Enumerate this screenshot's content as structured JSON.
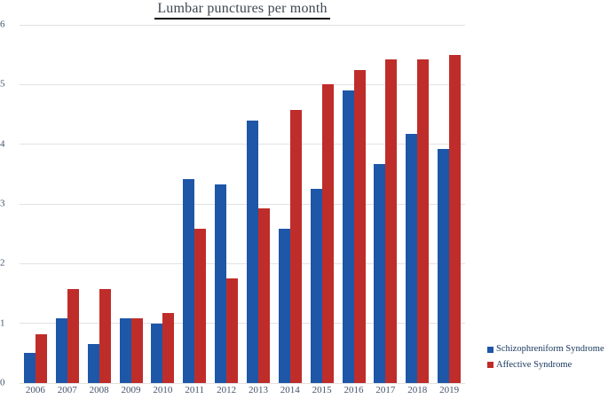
{
  "chart_data": {
    "type": "bar",
    "title": "Lumbar punctures per month",
    "categories": [
      "2006",
      "2007",
      "2008",
      "2009",
      "2010",
      "2011",
      "2012",
      "2013",
      "2014",
      "2015",
      "2016",
      "2017",
      "2018",
      "2019"
    ],
    "series": [
      {
        "name": "Schizophreniform Syndrome",
        "key": "schizophreniform-syndrome",
        "color": "#1e56a8",
        "values": [
          0.5,
          1.08,
          0.65,
          1.08,
          1.0,
          3.42,
          3.33,
          4.4,
          2.58,
          3.25,
          4.9,
          3.67,
          4.17,
          3.92
        ]
      },
      {
        "name": "Affective Syndrome",
        "key": "affective-syndrome",
        "color": "#bf2d2b",
        "values": [
          0.82,
          1.58,
          1.58,
          1.08,
          1.17,
          2.58,
          1.75,
          2.92,
          4.58,
          5.0,
          5.25,
          5.42,
          5.42,
          5.5
        ]
      }
    ],
    "xlabel": "",
    "ylabel": "",
    "ylim": [
      0,
      6
    ],
    "yticks": [
      0,
      1,
      2,
      3,
      4,
      5,
      6
    ],
    "grid": true,
    "legend_position": "right-bottom"
  },
  "colors": {
    "background": "#ffffff",
    "gridline": "#e2e2e2",
    "axis_label": "#44546a",
    "legend_text": "#17365d",
    "title_text": "#3f4650",
    "title_underline": "#0a0a0a"
  }
}
